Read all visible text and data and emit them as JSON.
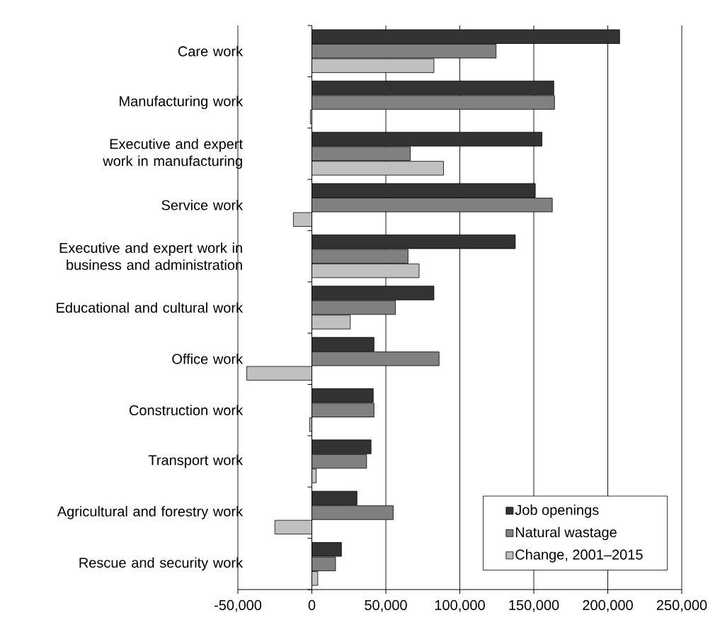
{
  "chart_data": {
    "type": "bar",
    "orientation": "horizontal",
    "categories": [
      "Care work",
      "Manufacturing work",
      "Executive and expert work in manufacturing",
      "Service work",
      "Executive and expert work in business and administration",
      "Educational and cultural work",
      "Office work",
      "Construction work",
      "Transport work",
      "Agricultural and forestry work",
      "Rescue and security work"
    ],
    "series": [
      {
        "name": "Job openings",
        "color": "#333333",
        "values": [
          208000,
          163500,
          155500,
          151000,
          137500,
          82500,
          42000,
          41500,
          40000,
          30500,
          20000
        ]
      },
      {
        "name": "Natural wastage",
        "color": "#808080",
        "values": [
          124500,
          164000,
          66500,
          162500,
          65000,
          56500,
          86000,
          42000,
          37000,
          55000,
          16000
        ]
      },
      {
        "name": "Change, 2001–2015",
        "color": "#c0c0c0",
        "values": [
          82500,
          -1000,
          89000,
          -12500,
          72500,
          26000,
          -44000,
          -1500,
          3000,
          -25000,
          4000
        ]
      }
    ],
    "xlim": [
      -50000,
      250000
    ],
    "xticks": [
      {
        "value": -50000,
        "label": "-50,000"
      },
      {
        "value": 0,
        "label": "0"
      },
      {
        "value": 50000,
        "label": "50,000"
      },
      {
        "value": 100000,
        "label": "100,000"
      },
      {
        "value": 150000,
        "label": "150,000"
      },
      {
        "value": 200000,
        "label": "200,000"
      },
      {
        "value": 250000,
        "label": "250,000"
      }
    ],
    "grid": "x",
    "legend": "bottom right"
  }
}
